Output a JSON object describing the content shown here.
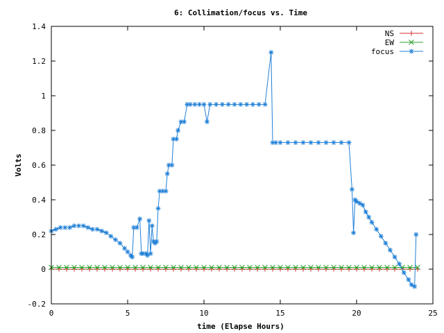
{
  "chart_data": {
    "type": "line",
    "title": "6: Collimation/focus vs. Time",
    "xlabel": "time (Elapse Hours)",
    "ylabel": "Volts",
    "xlim": [
      0,
      25
    ],
    "ylim": [
      -0.2,
      1.4
    ],
    "xticks": [
      0,
      5,
      10,
      15,
      20,
      25
    ],
    "yticks": [
      -0.2,
      0,
      0.2,
      0.4,
      0.6,
      0.8,
      1,
      1.2,
      1.4
    ],
    "ytick_labels": [
      "-0.2",
      "0",
      "0.2",
      "0.4",
      "0.6",
      "0.8",
      "1",
      "1.2",
      "1.4"
    ],
    "grid": false,
    "legend_position": "top-right",
    "series": [
      {
        "name": "NS",
        "color": "#d62728",
        "marker": "plus",
        "x": [
          0,
          0.5,
          1,
          1.5,
          2,
          2.5,
          3,
          3.5,
          4,
          4.5,
          5,
          5.5,
          6,
          6.5,
          7,
          7.5,
          8,
          8.5,
          9,
          9.5,
          10,
          10.5,
          11,
          11.5,
          12,
          12.5,
          13,
          13.5,
          14,
          14.5,
          15,
          15.5,
          16,
          16.5,
          17,
          17.5,
          18,
          18.5,
          19,
          19.5,
          20,
          20.5,
          21,
          21.5,
          22,
          22.5,
          23,
          23.5,
          24
        ],
        "y": [
          0,
          0,
          0,
          0,
          0,
          0,
          0,
          0,
          0,
          0,
          0,
          0,
          0,
          0,
          0,
          0,
          0,
          0,
          0,
          0,
          0,
          0,
          0,
          0,
          0,
          0,
          0,
          0,
          0,
          0,
          0,
          0,
          0,
          0,
          0,
          0,
          0,
          0,
          0,
          0,
          0,
          0,
          0,
          0,
          0,
          0,
          0,
          0,
          0
        ]
      },
      {
        "name": "EW",
        "color": "#2ca02c",
        "marker": "x",
        "x": [
          0,
          0.5,
          1,
          1.5,
          2,
          2.5,
          3,
          3.5,
          4,
          4.5,
          5,
          5.5,
          6,
          6.5,
          7,
          7.5,
          8,
          8.5,
          9,
          9.5,
          10,
          10.5,
          11,
          11.5,
          12,
          12.5,
          13,
          13.5,
          14,
          14.5,
          15,
          15.5,
          16,
          16.5,
          17,
          17.5,
          18,
          18.5,
          19,
          19.5,
          20,
          20.5,
          21,
          21.5,
          22,
          22.5,
          23,
          23.5,
          24
        ],
        "y": [
          0.01,
          0.01,
          0.01,
          0.01,
          0.01,
          0.01,
          0.01,
          0.01,
          0.01,
          0.01,
          0.01,
          0.01,
          0.01,
          0.01,
          0.01,
          0.01,
          0.01,
          0.01,
          0.01,
          0.01,
          0.01,
          0.01,
          0.01,
          0.01,
          0.01,
          0.01,
          0.01,
          0.01,
          0.01,
          0.01,
          0.01,
          0.01,
          0.01,
          0.01,
          0.01,
          0.01,
          0.01,
          0.01,
          0.01,
          0.01,
          0.01,
          0.01,
          0.01,
          0.01,
          0.01,
          0.01,
          0.01,
          0.01,
          0.01
        ]
      },
      {
        "name": "focus",
        "color": "#1f7fd6",
        "marker": "star",
        "x": [
          0,
          0.3,
          0.6,
          0.9,
          1.2,
          1.5,
          1.8,
          2.1,
          2.4,
          2.7,
          3.0,
          3.3,
          3.6,
          3.9,
          4.2,
          4.5,
          4.8,
          5.0,
          5.2,
          5.3,
          5.4,
          5.6,
          5.8,
          5.9,
          6.0,
          6.2,
          6.3,
          6.4,
          6.5,
          6.6,
          6.7,
          6.8,
          6.9,
          7.0,
          7.1,
          7.3,
          7.5,
          7.6,
          7.7,
          7.9,
          8.0,
          8.2,
          8.3,
          8.5,
          8.7,
          8.9,
          9.1,
          9.4,
          9.7,
          10.0,
          10.2,
          10.4,
          10.8,
          11.2,
          11.6,
          12.0,
          12.4,
          12.8,
          13.2,
          13.6,
          14.0,
          14.4,
          14.5,
          14.7,
          15.0,
          15.5,
          16.0,
          16.5,
          17.0,
          17.5,
          18.0,
          18.5,
          19.0,
          19.5,
          19.7,
          19.8,
          19.9,
          20.0,
          20.2,
          20.4,
          20.6,
          20.8,
          21.0,
          21.3,
          21.6,
          21.9,
          22.2,
          22.5,
          22.8,
          23.1,
          23.4,
          23.6,
          23.8,
          23.9
        ],
        "y": [
          0.22,
          0.23,
          0.24,
          0.24,
          0.24,
          0.25,
          0.25,
          0.25,
          0.24,
          0.23,
          0.23,
          0.22,
          0.21,
          0.19,
          0.17,
          0.15,
          0.12,
          0.1,
          0.08,
          0.07,
          0.24,
          0.24,
          0.29,
          0.09,
          0.09,
          0.09,
          0.08,
          0.28,
          0.09,
          0.25,
          0.16,
          0.15,
          0.16,
          0.35,
          0.45,
          0.45,
          0.45,
          0.55,
          0.6,
          0.6,
          0.75,
          0.75,
          0.8,
          0.85,
          0.85,
          0.95,
          0.95,
          0.95,
          0.95,
          0.95,
          0.85,
          0.95,
          0.95,
          0.95,
          0.95,
          0.95,
          0.95,
          0.95,
          0.95,
          0.95,
          0.95,
          1.25,
          0.73,
          0.73,
          0.73,
          0.73,
          0.73,
          0.73,
          0.73,
          0.73,
          0.73,
          0.73,
          0.73,
          0.73,
          0.46,
          0.21,
          0.4,
          0.39,
          0.38,
          0.37,
          0.33,
          0.3,
          0.27,
          0.23,
          0.19,
          0.15,
          0.11,
          0.07,
          0.03,
          -0.02,
          -0.06,
          -0.09,
          -0.1,
          0.2
        ]
      }
    ]
  }
}
